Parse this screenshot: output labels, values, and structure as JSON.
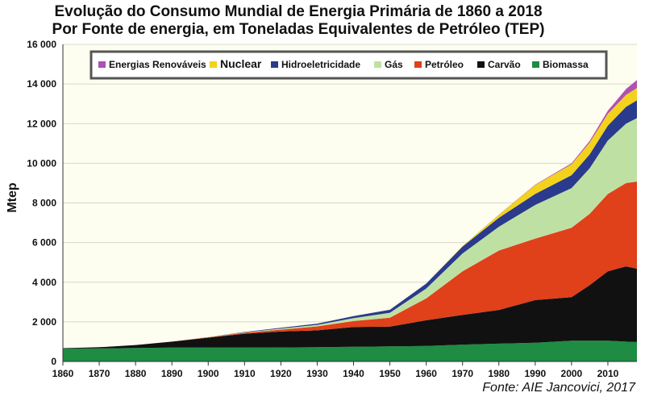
{
  "chart_data": {
    "type": "area",
    "stacked": true,
    "title": "Evolução do Consumo Mundial de Energia Primária de 1860 a 2018",
    "subtitle": "Por Fonte de energia, em Toneladas Equivalentes de Petróleo (TEP)",
    "ylabel": "Mtep",
    "xlabel": "",
    "source": "Fonte: AIE Jancovici, 2017",
    "xlim": [
      1860,
      2018
    ],
    "ylim": [
      0,
      16000
    ],
    "x_ticks": [
      "1860",
      "1870",
      "1880",
      "1890",
      "1900",
      "1910",
      "1920",
      "1930",
      "1940",
      "1950",
      "1960",
      "1970",
      "1980",
      "1990",
      "2000",
      "2010"
    ],
    "y_ticks": [
      "0",
      "2 000",
      "4 000",
      "6 000",
      "8 000",
      "10 000",
      "12 000",
      "14 000",
      "16 000"
    ],
    "legend_position": "top",
    "plot_background": "#fdfdf0",
    "x": [
      1860,
      1870,
      1880,
      1890,
      1900,
      1910,
      1920,
      1930,
      1940,
      1950,
      1960,
      1970,
      1980,
      1990,
      2000,
      2005,
      2010,
      2015,
      2018
    ],
    "series": [
      {
        "name": "Biomassa",
        "color": "#1e8c42",
        "values": [
          650,
          660,
          680,
          700,
          700,
          700,
          710,
          720,
          740,
          760,
          780,
          850,
          900,
          950,
          1050,
          1050,
          1050,
          1000,
          980
        ]
      },
      {
        "name": "Carvão",
        "color": "#111111",
        "values": [
          20,
          60,
          150,
          300,
          500,
          700,
          800,
          850,
          1000,
          1000,
          1300,
          1500,
          1700,
          2150,
          2200,
          2800,
          3500,
          3800,
          3700
        ]
      },
      {
        "name": "Petróleo",
        "color": "#e0401a",
        "values": [
          0,
          0,
          0,
          0,
          20,
          50,
          100,
          200,
          300,
          450,
          1100,
          2200,
          3000,
          3100,
          3500,
          3600,
          3900,
          4200,
          4400
        ]
      },
      {
        "name": "Gás",
        "color": "#bfe0a3",
        "values": [
          0,
          0,
          0,
          0,
          10,
          20,
          50,
          80,
          150,
          250,
          500,
          900,
          1200,
          1700,
          2000,
          2300,
          2700,
          3000,
          3200
        ]
      },
      {
        "name": "Hidroeletricidade",
        "color": "#2a3a8c",
        "values": [
          0,
          0,
          0,
          0,
          5,
          20,
          40,
          60,
          100,
          150,
          250,
          350,
          450,
          550,
          650,
          700,
          750,
          850,
          900
        ]
      },
      {
        "name": "Nuclear",
        "color": "#f2d21c",
        "values": [
          0,
          0,
          0,
          0,
          0,
          0,
          0,
          0,
          0,
          0,
          0,
          20,
          150,
          450,
          550,
          600,
          600,
          600,
          620
        ]
      },
      {
        "name": "Energias Renováveis",
        "color": "#b04fb5",
        "values": [
          0,
          0,
          0,
          0,
          0,
          0,
          0,
          0,
          0,
          0,
          0,
          0,
          10,
          20,
          50,
          80,
          150,
          300,
          400
        ]
      }
    ],
    "legend_order": [
      "Energias Renováveis",
      "Nuclear",
      "Hidroeletricidade",
      "Gás",
      "Petróleo",
      "Carvão",
      "Biomassa"
    ],
    "grid": true
  }
}
